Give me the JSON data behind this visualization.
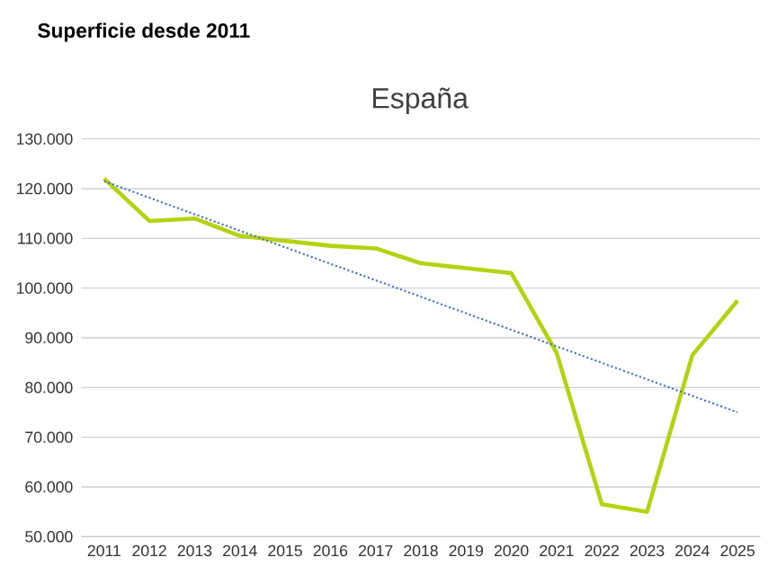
{
  "chart_data": {
    "type": "line",
    "title": "Superficie desde 2011",
    "subtitle": "España",
    "x": [
      2011,
      2012,
      2013,
      2014,
      2015,
      2016,
      2017,
      2018,
      2019,
      2020,
      2021,
      2022,
      2023,
      2024,
      2025
    ],
    "xlim": [
      2010.5,
      2025.5
    ],
    "xticks": [
      2011,
      2012,
      2013,
      2014,
      2015,
      2016,
      2017,
      2018,
      2019,
      2020,
      2021,
      2022,
      2023,
      2024,
      2025
    ],
    "ylim": [
      50000,
      130000
    ],
    "yticks": [
      {
        "value": 50000,
        "label": "50.000"
      },
      {
        "value": 60000,
        "label": "60.000"
      },
      {
        "value": 70000,
        "label": "70.000"
      },
      {
        "value": 80000,
        "label": "80.000"
      },
      {
        "value": 90000,
        "label": "90.000"
      },
      {
        "value": 100000,
        "label": "100.000"
      },
      {
        "value": 110000,
        "label": "110.000"
      },
      {
        "value": 120000,
        "label": "120.000"
      },
      {
        "value": 130000,
        "label": "130.000"
      }
    ],
    "grid": "y",
    "series": [
      {
        "color": "#b5d20f",
        "line_style": "solid",
        "values": [
          122000,
          113500,
          114000,
          110500,
          109500,
          108500,
          108000,
          105000,
          104000,
          103000,
          87000,
          56500,
          55000,
          86500,
          97500
        ]
      },
      {
        "type": "line",
        "color": "#4472c4",
        "line_style": "dotted",
        "x": [
          2011,
          2025
        ],
        "values": [
          121500,
          75000
        ]
      }
    ]
  }
}
